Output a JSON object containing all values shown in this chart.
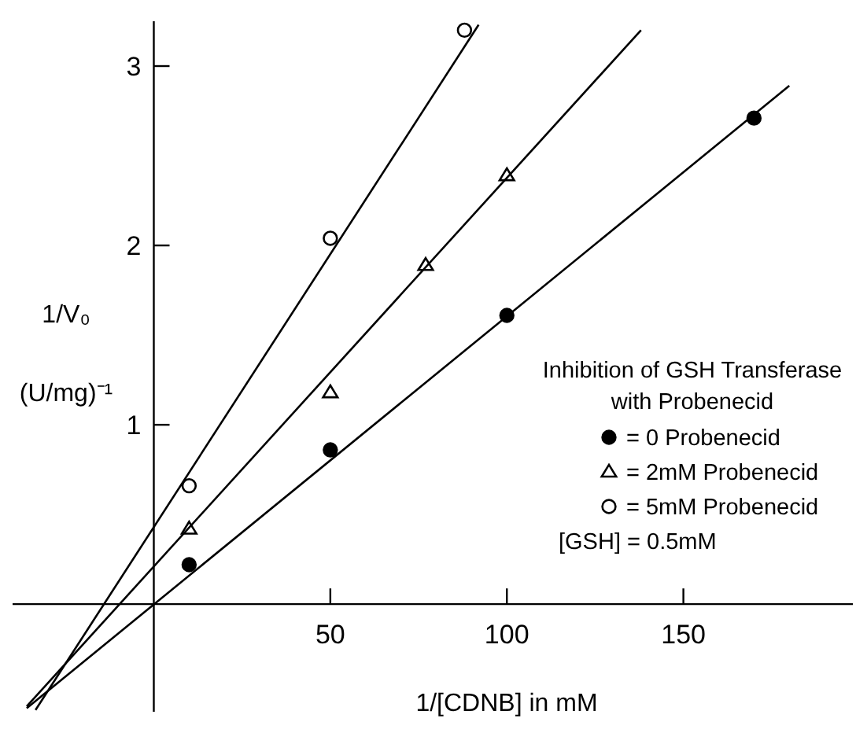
{
  "chart_data": {
    "type": "scatter",
    "xlabel": "1/[CDNB] in mM",
    "ylabel": "1/V₀ (U/mg)⁻¹",
    "legend_title": "Inhibition of GSH Transferase with Probenecid",
    "legend": "right",
    "xlim": [
      -40,
      198
    ],
    "ylim": [
      -0.6,
      3.25
    ],
    "xticks": [
      50,
      100,
      150
    ],
    "yticks": [
      1,
      2,
      3
    ],
    "grid": false,
    "series": [
      {
        "name": "= 0 Probenecid",
        "marker": "circle",
        "color": "#000000",
        "x": [
          10,
          50,
          100,
          170
        ],
        "values": [
          0.22,
          0.86,
          1.61,
          2.71
        ]
      },
      {
        "name": "= 2mM Probenecid",
        "marker": "triangle",
        "color": "#ffffff",
        "x": [
          10,
          50,
          77,
          100
        ],
        "values": [
          0.42,
          1.18,
          1.89,
          2.39
        ]
      },
      {
        "name": "= 5mM Probenecid",
        "marker": "circle",
        "color": "#ffffff",
        "x": [
          10,
          50,
          88
        ],
        "values": [
          0.66,
          2.04,
          3.2
        ]
      },
      {
        "type": "line",
        "color": "#000000",
        "x": [
          -36,
          180
        ],
        "values": [
          -0.58,
          2.89
        ]
      },
      {
        "type": "line",
        "color": "#000000",
        "x": [
          -36,
          138
        ],
        "values": [
          -0.57,
          3.2
        ]
      },
      {
        "type": "line",
        "color": "#000000",
        "x": [
          -33.5,
          92
        ],
        "values": [
          -0.59,
          3.23
        ]
      }
    ],
    "annotations": [
      "[GSH] = 0.5mM"
    ]
  }
}
